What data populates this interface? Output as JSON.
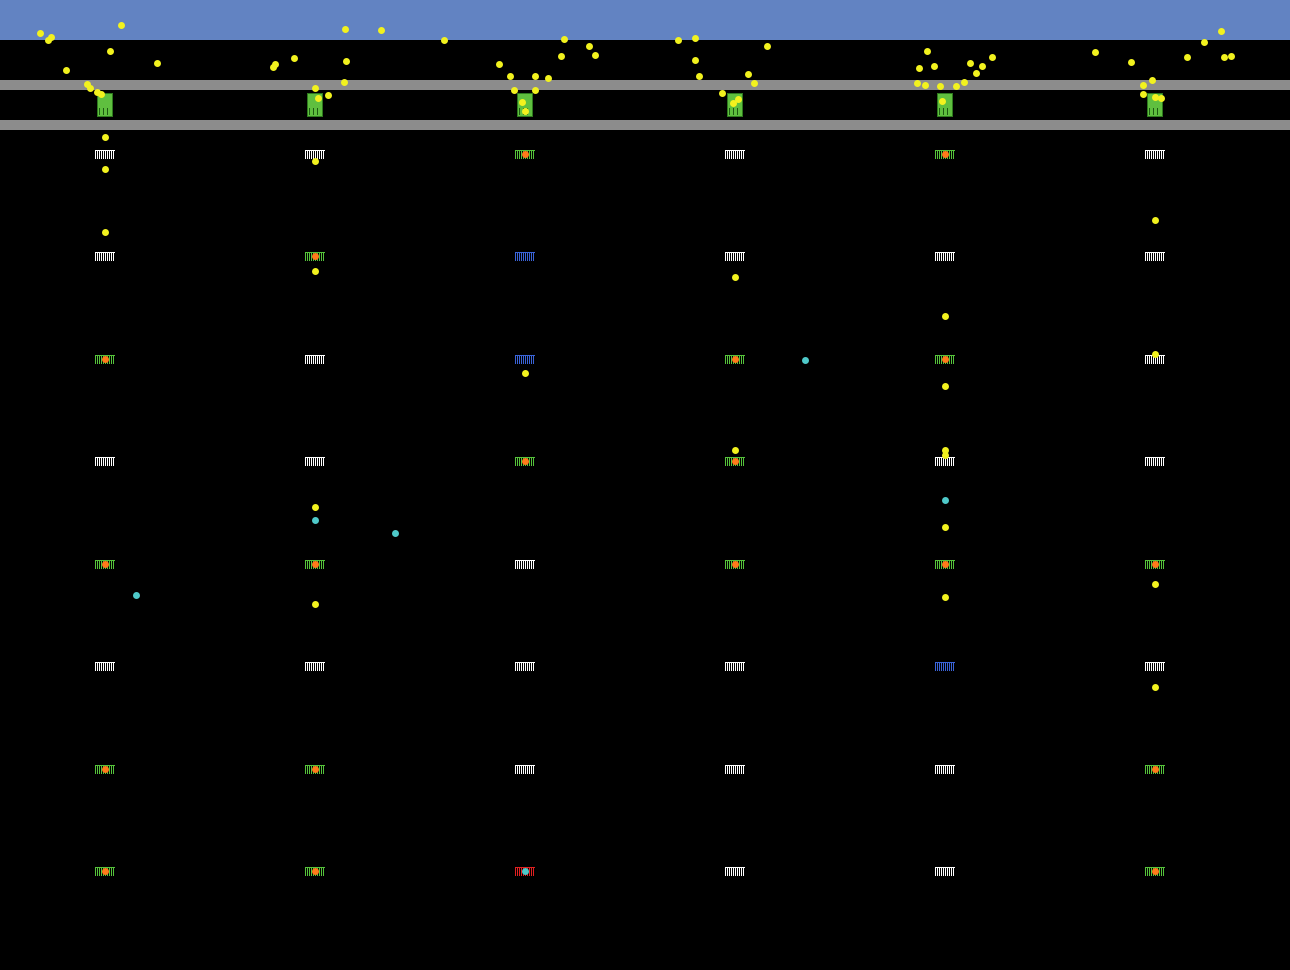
{
  "colors": {
    "sky": "#6283c2",
    "road": "#8c8c8c",
    "booth": "#5fbf3f",
    "yellow_unit": "#f2f21e",
    "cyan_unit": "#4ec9c9",
    "marker_orange": "#ff7a1a"
  },
  "legend_states": {
    "w": "idle",
    "g": "open-occupied",
    "b": "blocked",
    "r": "alert"
  },
  "gate_grid": [
    [
      "w",
      "w",
      "g",
      "w",
      "g",
      "w"
    ],
    [
      "w",
      "g",
      "b",
      "w",
      "w",
      "w"
    ],
    [
      "g",
      "w",
      "b",
      "g",
      "g",
      "w"
    ],
    [
      "w",
      "w",
      "g",
      "g",
      "w",
      "w"
    ],
    [
      "g",
      "g",
      "w",
      "g",
      "g",
      "g"
    ],
    [
      "w",
      "w",
      "w",
      "w",
      "b",
      "w"
    ],
    [
      "g",
      "g",
      "w",
      "w",
      "w",
      "g"
    ],
    [
      "g",
      "g",
      "r",
      "w",
      "w",
      "g"
    ]
  ],
  "booth_count": 6
}
